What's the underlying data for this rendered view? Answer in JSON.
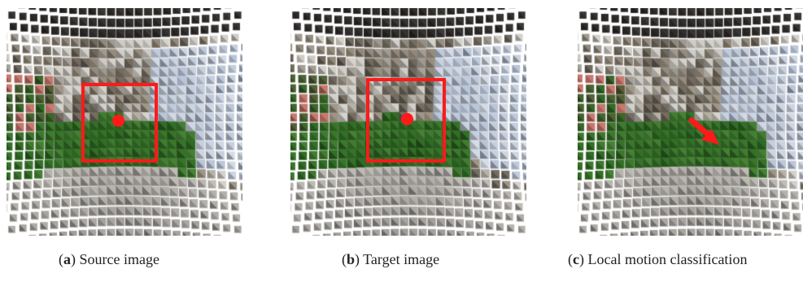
{
  "figure": {
    "panels": [
      {
        "id": "source",
        "caption_open": "(",
        "caption_letter": "a",
        "caption_text": ") Source image",
        "has_box": true,
        "has_dot": true,
        "has_arrow": false,
        "motion_direction": null
      },
      {
        "id": "target",
        "caption_open": "(",
        "caption_letter": "b",
        "caption_text": ") Target image",
        "has_box": true,
        "has_dot": true,
        "has_arrow": false,
        "motion_direction": null
      },
      {
        "id": "local-motion",
        "caption_open": "(",
        "caption_letter": "c",
        "caption_text": ") Local motion classification",
        "has_box": false,
        "has_dot": false,
        "has_arrow": true,
        "motion_direction": "down-right"
      }
    ],
    "colors": {
      "annotation": "#ff1a1a",
      "sky": "#b9c5d8",
      "foliage": "#2f6b24",
      "pavement": "#8c8a87",
      "dark_interior": "#2d2a27"
    }
  }
}
